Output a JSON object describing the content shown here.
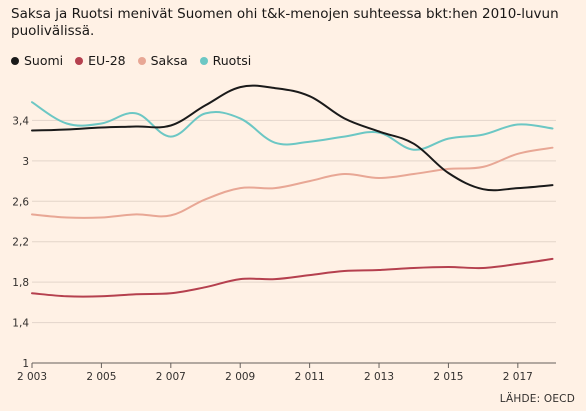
{
  "chart_data": {
    "type": "line",
    "title": "Saksa ja Ruotsi menivät Suomen ohi t&k-menojen suhteessa bkt:hen 2010-luvun puolivälissä.",
    "source": "LÄHDE: OECD",
    "x": [
      2003,
      2004,
      2005,
      2006,
      2007,
      2008,
      2009,
      2010,
      2011,
      2012,
      2013,
      2014,
      2015,
      2016,
      2017,
      2018
    ],
    "x_tick_labels": [
      "2 003",
      "2 005",
      "2 007",
      "2 009",
      "2 011",
      "2 013",
      "2 015",
      "2 017"
    ],
    "x_ticks": [
      2003,
      2005,
      2007,
      2009,
      2011,
      2013,
      2015,
      2017
    ],
    "xlim": [
      2003,
      2018.1
    ],
    "ylim": [
      1,
      3.8
    ],
    "y_ticks": [
      1,
      1.4,
      1.8,
      2.2,
      2.6,
      3,
      3.4
    ],
    "y_tick_labels": [
      "1",
      "1,4",
      "1,8",
      "2,2",
      "2,6",
      "3",
      "3,4"
    ],
    "grid": true,
    "legend_position": "top-left",
    "series": [
      {
        "name": "Suomi",
        "color": "#1a1a1a",
        "values": [
          3.3,
          3.31,
          3.33,
          3.34,
          3.35,
          3.55,
          3.73,
          3.72,
          3.64,
          3.42,
          3.29,
          3.17,
          2.88,
          2.72,
          2.73,
          2.76
        ]
      },
      {
        "name": "EU-28",
        "color": "#b5404e",
        "values": [
          1.69,
          1.66,
          1.66,
          1.68,
          1.69,
          1.75,
          1.83,
          1.83,
          1.87,
          1.91,
          1.92,
          1.94,
          1.95,
          1.94,
          1.98,
          2.03
        ]
      },
      {
        "name": "Saksa",
        "color": "#e8a795",
        "values": [
          2.47,
          2.44,
          2.44,
          2.47,
          2.46,
          2.62,
          2.73,
          2.73,
          2.8,
          2.87,
          2.83,
          2.87,
          2.92,
          2.94,
          3.07,
          3.13
        ]
      },
      {
        "name": "Ruotsi",
        "color": "#6cc7c4",
        "values": [
          3.58,
          3.37,
          3.37,
          3.47,
          3.24,
          3.47,
          3.42,
          3.18,
          3.19,
          3.24,
          3.28,
          3.11,
          3.22,
          3.26,
          3.36,
          3.32
        ]
      }
    ]
  }
}
